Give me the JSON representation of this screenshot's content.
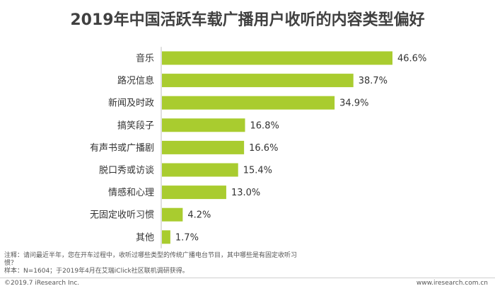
{
  "colors": {
    "bar": "#a9cc2f",
    "axis": "#bfbfbf",
    "text": "#333333",
    "title": "#404040"
  },
  "chart_data": {
    "type": "bar",
    "orientation": "horizontal",
    "title": "2019年中国活跃车载广播用户收听的内容类型偏好",
    "categories": [
      "音乐",
      "路况信息",
      "新闻及时政",
      "搞笑段子",
      "有声书或广播剧",
      "脱口秀或访谈",
      "情感和心理",
      "无固定收听习惯",
      "其他"
    ],
    "values": [
      46.6,
      38.7,
      34.9,
      16.8,
      16.6,
      15.4,
      13.0,
      4.2,
      1.7
    ],
    "value_labels": [
      "46.6%",
      "38.7%",
      "34.9%",
      "16.8%",
      "16.6%",
      "15.4%",
      "13.0%",
      "4.2%",
      "1.7%"
    ],
    "unit": "%",
    "xlim": [
      0,
      46.6
    ],
    "grid": false,
    "legend": "none"
  },
  "notes": {
    "line1": "注释：请问最近半年，您在开车过程中，收听过哪些类型的传统广播电台节目，其中哪些是有固定收听习惯？",
    "line2": "样本：N=1604；于2019年4月在艾瑞iClick社区联机调研获得。"
  },
  "footer": {
    "left": "©2019.7 iResearch Inc.",
    "right": "www.iresearch.com.cn"
  }
}
